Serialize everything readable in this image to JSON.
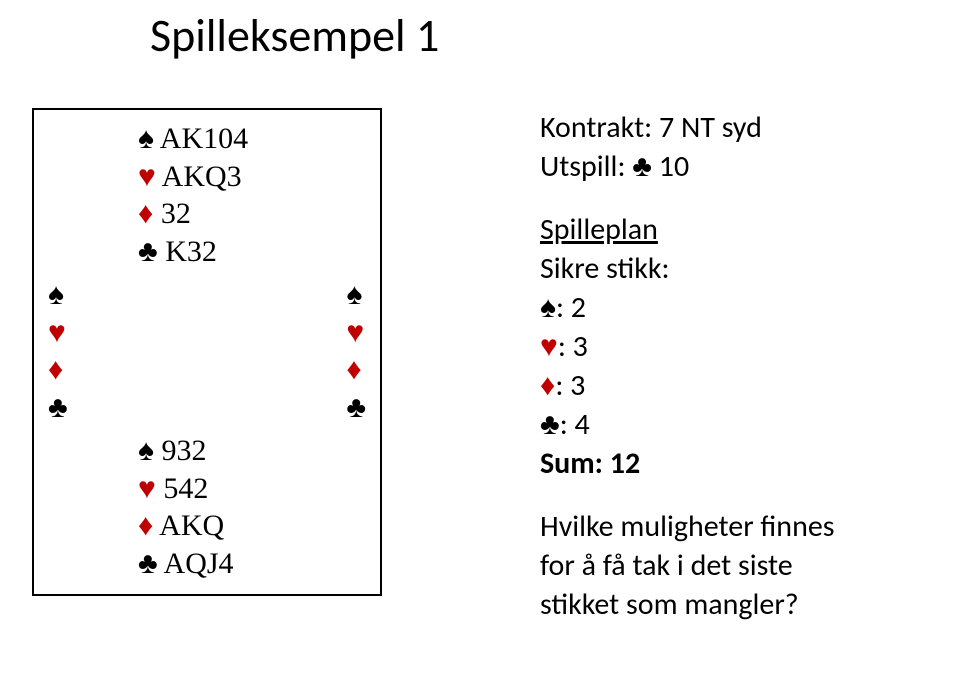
{
  "title": "Spilleksempel 1",
  "suits": {
    "spade": {
      "glyph": "♠",
      "color": "#000000"
    },
    "heart": {
      "glyph": "♥",
      "color": "#c00000"
    },
    "diamond": {
      "glyph": "♦",
      "color": "#c00000"
    },
    "club": {
      "glyph": "♣",
      "color": "#000000"
    }
  },
  "hands": {
    "north": {
      "spades": "AK104",
      "hearts": "AKQ3",
      "diamonds": "32",
      "clubs": "K32"
    },
    "south": {
      "spades": "932",
      "hearts": "542",
      "diamonds": "AKQ",
      "clubs": "AQJ4"
    }
  },
  "contract_label": "Kontrakt:",
  "contract_value": "7 NT syd",
  "lead_label": "Utspill:",
  "lead_suit_glyph": "♣",
  "lead_card": "10",
  "plan_heading": "Spilleplan",
  "tricks_label": "Sikre stikk:",
  "tricks": {
    "spades": "2",
    "hearts": "3",
    "diamonds": "3",
    "clubs": "4"
  },
  "sum_label": "Sum:",
  "sum_value": "12",
  "question_line1": "Hvilke muligheter finnes",
  "question_line2": "for å få tak i det siste",
  "question_line3": "stikket som mangler?"
}
